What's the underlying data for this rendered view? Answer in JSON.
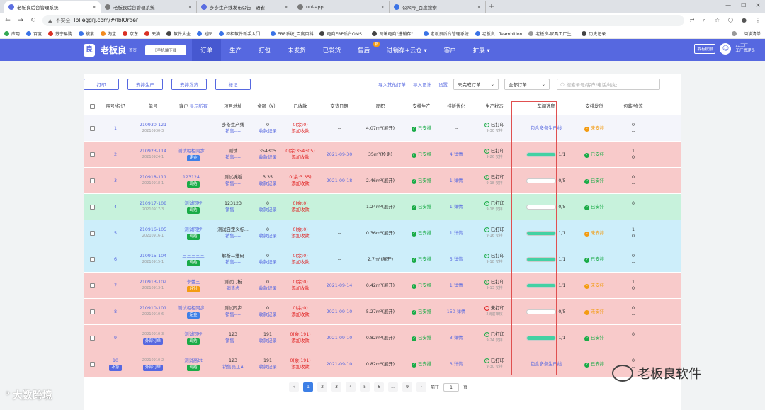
{
  "browser": {
    "tabs": [
      {
        "label": "老板良后台管理系统",
        "active": true
      },
      {
        "label": "老板良后台管理系统",
        "active": false
      },
      {
        "label": "多多生产线发布公告 - 语雀",
        "active": false
      },
      {
        "label": "uni-app",
        "active": false
      },
      {
        "label": "公众号_百度搜索",
        "active": false
      }
    ],
    "address": {
      "security": "不安全",
      "url": "lbl.eggrj.com/#/lblOrder"
    },
    "bookmarks": [
      "应用",
      "百度",
      "苏宁易购",
      "搜索",
      "淘宝",
      "京东",
      "天猫",
      "软件大全",
      "地图",
      "柜柜软件新手入门...",
      "ERP系统_百度百科",
      "电商ERP后台OMS...",
      "跨境电商\"进销存\"...",
      "老板良后台管理系统",
      "老板良 · Teambition",
      "老板良-家具工厂生...",
      "历史记录"
    ],
    "bookmarks_right": "阅读清单"
  },
  "app": {
    "brand": "老板良",
    "brand_sub": "首页",
    "download": "手机端下载",
    "nav": [
      {
        "label": "订单",
        "active": true
      },
      {
        "label": "生产"
      },
      {
        "label": "打包"
      },
      {
        "label": "未发货"
      },
      {
        "label": "已发货"
      },
      {
        "label": "售后",
        "badge": "新"
      },
      {
        "label": "进销存+云仓 ▾"
      },
      {
        "label": "客户"
      },
      {
        "label": "扩展 ▾"
      }
    ],
    "rights_btn": "我有权限",
    "user_name": "xx工厂",
    "user_role": "工厂管理员"
  },
  "toolbar": {
    "buttons": [
      "打印",
      "安排生产",
      "安排发货",
      "标记"
    ],
    "links": [
      "导入其他订单",
      "导入设计",
      "设置"
    ],
    "order_filter": "未完成订单",
    "all_orders": "全部订单",
    "search_placeholder": "搜索单号/客户/电话/地址"
  },
  "columns": [
    "",
    "序号/标记",
    "单号",
    "客户 显示所有",
    "项目地址",
    "金额（¥）",
    "已收款",
    "交货日期",
    "面积",
    "安排生产",
    "排版优化",
    "生产状态",
    "车间进度",
    "安排发货",
    "包装/物流"
  ],
  "rows": [
    {
      "bg": "#f4f5fb",
      "idx": "1",
      "no": "210930-121",
      "sub": "20210930-3",
      "cust": "",
      "tag": "",
      "tagc": "",
      "addr1": "多条生产线",
      "addr2": "销售----",
      "amt": "0",
      "amt2": "收款记录",
      "paid": "0(余:0)",
      "paid2": "添加收款",
      "date": "--",
      "area": "4.07m²(展开)",
      "prod": "已安排",
      "opt": "--",
      "st": "已打印",
      "st2": "9-30 安排",
      "stok": true,
      "progtext": "包含多条生产线",
      "prog": null,
      "ship": "未安排",
      "shipok": false,
      "pack1": "0",
      "pack2": "--"
    },
    {
      "bg": "#f8caca",
      "idx": "2",
      "no": "210923-114",
      "sub": "20210924-1",
      "cust": "测试柜柜同步...",
      "tag": "定金",
      "tagc": "blue",
      "addr1": "测试",
      "addr2": "销售----",
      "amt": "354305",
      "amt2": "收款记录",
      "paid": "0(余:354305)",
      "paid2": "添加收款",
      "date": "2021-09-30",
      "area": "35m²(投影)",
      "prod": "已安排",
      "opt": "4 详情",
      "st": "已打印",
      "st2": "9-26 安排",
      "stok": true,
      "progtext": "1/1",
      "prog": 1,
      "ship": "已安排",
      "shipok": true,
      "pack1": "1",
      "pack2": "0"
    },
    {
      "bg": "#f8caca",
      "idx": "3",
      "no": "210918-111",
      "sub": "20210918-1",
      "cust": "123124...",
      "tag": "现结",
      "tagc": "green",
      "addr1": "测试拆版",
      "addr2": "销售----",
      "amt": "3.35",
      "amt2": "收款记录",
      "paid": "0(余:3.35)",
      "paid2": "添加收款",
      "date": "2021-09-18",
      "area": "2.46m²(展开)",
      "prod": "已安排",
      "opt": "1 详情",
      "st": "已打印",
      "st2": "9-18 安排",
      "stok": true,
      "progtext": "0/5",
      "prog": 0,
      "ship": "已安排",
      "shipok": true,
      "pack1": "0",
      "pack2": "--"
    },
    {
      "bg": "#c7f2dc",
      "idx": "4",
      "no": "210917-108",
      "sub": "20210917-3",
      "cust": "测试同步",
      "tag": "现结",
      "tagc": "green",
      "addr1": "123123",
      "addr2": "销售----",
      "amt": "0",
      "amt2": "收款记录",
      "paid": "0(余:0)",
      "paid2": "添加收款",
      "date": "--",
      "area": "1.24m²(展开)",
      "prod": "已安排",
      "opt": "1 详情",
      "st": "已打印",
      "st2": "9-18 安排",
      "stok": true,
      "progtext": "0/5",
      "prog": 0,
      "ship": "已安排",
      "shipok": true,
      "pack1": "0",
      "pack2": "--"
    },
    {
      "bg": "#cdeefa",
      "idx": "5",
      "no": "210916-105",
      "sub": "20210916-1",
      "cust": "测试同步",
      "tag": "现结",
      "tagc": "green",
      "addr1": "测试自定义标...",
      "addr2": "销售----",
      "amt": "0",
      "amt2": "收款记录",
      "paid": "0(余:0)",
      "paid2": "添加收款",
      "date": "--",
      "area": "0.36m²(展开)",
      "prod": "已安排",
      "opt": "1 详情",
      "st": "已打印",
      "st2": "9-16 安排",
      "stok": true,
      "progtext": "1/1",
      "prog": 1,
      "ship": "未安排",
      "shipok": false,
      "pack1": "1",
      "pack2": "0"
    },
    {
      "bg": "#cdeefa",
      "idx": "6",
      "no": "210915-104",
      "sub": "20210915-1",
      "cust": "三三三三三",
      "tag": "现结",
      "tagc": "green",
      "addr1": "解析二维码",
      "addr2": "销售----",
      "amt": "0",
      "amt2": "收款记录",
      "paid": "0(余:0)",
      "paid2": "添加收款",
      "date": "--",
      "area": "2.7m²(展开)",
      "prod": "已安排",
      "opt": "5 详情",
      "st": "已打印",
      "st2": "9-18 安排",
      "stok": true,
      "progtext": "1/1",
      "prog": 1,
      "ship": "已安排",
      "shipok": true,
      "pack1": "0",
      "pack2": "--"
    },
    {
      "bg": "#f8caca",
      "idx": "7",
      "no": "210913-102",
      "sub": "20210913-1",
      "cust": "李蕾三",
      "tag": "月付",
      "tagc": "orange",
      "addr1": "测试门板",
      "addr2": "销售虎",
      "amt": "0",
      "amt2": "收款记录",
      "paid": "0(余:0)",
      "paid2": "添加收款",
      "date": "2021-09-14",
      "area": "0.42m²(展开)",
      "prod": "已安排",
      "opt": "1 详情",
      "st": "已打印",
      "st2": "9-13 安排",
      "stok": true,
      "progtext": "1/1",
      "prog": 1,
      "ship": "未安排",
      "shipok": false,
      "pack1": "1",
      "pack2": "0"
    },
    {
      "bg": "#f8caca",
      "idx": "8",
      "no": "210910-101",
      "sub": "20210910-6",
      "cust": "测试柜柜同步...",
      "tag": "定金",
      "tagc": "blue",
      "addr1": "测试同步",
      "addr2": "销售----",
      "amt": "0",
      "amt2": "收款记录",
      "paid": "0(余:0)",
      "paid2": "添加收款",
      "date": "2021-09-10",
      "area": "5.27m²(展开)",
      "prod": "已安排",
      "opt": "150 详情",
      "st": "未打印",
      "st2": "2周前审核",
      "stok": false,
      "progtext": "0/5",
      "prog": 0,
      "ship": "未安排",
      "shipok": false,
      "pack1": "0",
      "pack2": "--"
    },
    {
      "bg": "#f8caca",
      "idx": "9",
      "no": "",
      "sub": "20210910-3",
      "cust": "测试同步",
      "tag": "现结",
      "tagc": "green",
      "extratag": "外部订单",
      "addr1": "123",
      "addr2": "销售----",
      "amt": "191",
      "amt2": "收款记录",
      "paid": "0(余:191)",
      "paid2": "添加收款",
      "date": "2021-09-10",
      "area": "0.82m²(展开)",
      "prod": "已安排",
      "opt": "3 详情",
      "st": "已打印",
      "st2": "9-24 安排",
      "stok": true,
      "progtext": "1/1",
      "prog": 1,
      "ship": "已安排",
      "shipok": true,
      "pack1": "0",
      "pack2": "--"
    },
    {
      "bg": "#f8caca",
      "idx": "10",
      "idxtag": "不急",
      "no": "",
      "sub": "20210910-2",
      "cust": "测试高bt",
      "tag": "现结",
      "tagc": "green",
      "extratag": "外部订单",
      "addr1": "123",
      "addr2": "销售员工A",
      "amt": "191",
      "amt2": "收款记录",
      "paid": "0(余:191)",
      "paid2": "添加收款",
      "date": "2021-09-10",
      "area": "0.82m²(展开)",
      "prod": "已安排",
      "opt": "3 详情",
      "st": "已打印",
      "st2": "9-30 安排",
      "stok": true,
      "progtext": "包含多条生产线",
      "prog": null,
      "ship": "已安排",
      "shipok": true,
      "pack1": "0",
      "pack2": "--"
    }
  ],
  "pager": {
    "prev": "‹",
    "pages": [
      "1",
      "2",
      "3",
      "4",
      "5",
      "6",
      "...",
      "9"
    ],
    "next": "›",
    "goto": "前往",
    "goto_val": "1",
    "page_unit": "页"
  },
  "watermarks": {
    "left": "大数跨境",
    "right": "老板良软件"
  }
}
